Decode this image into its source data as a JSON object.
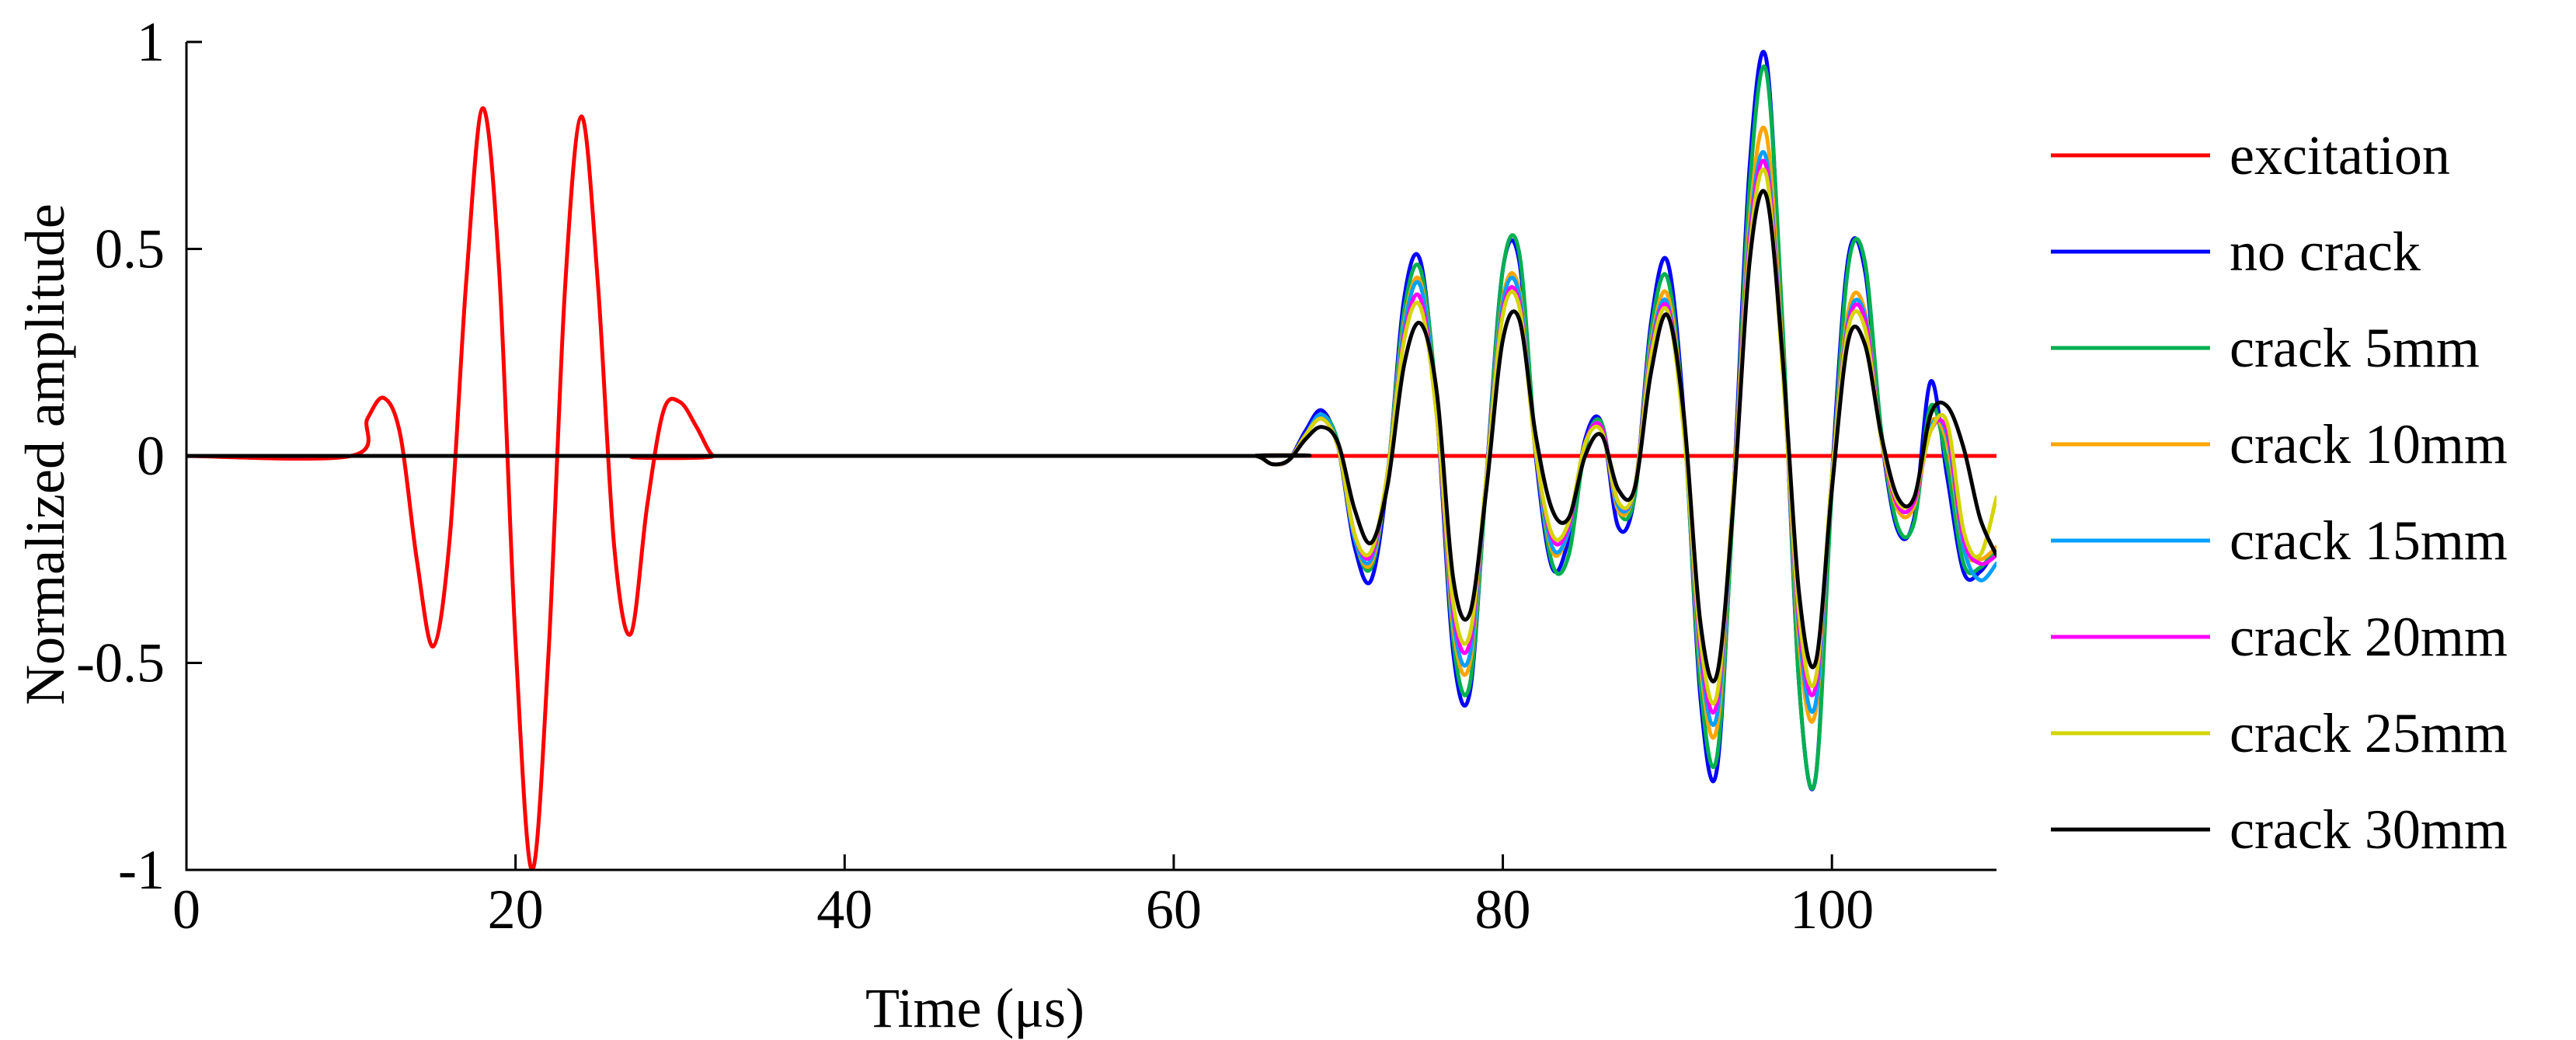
{
  "chart_data": {
    "type": "line",
    "title": "",
    "xlabel": "Time (μs)",
    "ylabel": "Normalized amplitude",
    "xlim": [
      0,
      110
    ],
    "ylim": [
      -1,
      1
    ],
    "xticks": [
      0,
      20,
      40,
      60,
      80,
      100
    ],
    "yticks": [
      -1,
      -0.5,
      0,
      0.5,
      1
    ],
    "xtick_labels": [
      "0",
      "20",
      "40",
      "60",
      "80",
      "100"
    ],
    "ytick_labels": [
      "-1",
      "-0.5",
      "0",
      "0.5",
      "1"
    ],
    "grid": false,
    "legend_position": "right",
    "series": [
      {
        "name": "excitation",
        "color": "#ff0000",
        "x": [
          0,
          10,
          11,
          12,
          13,
          14,
          15,
          16,
          17,
          18,
          19,
          20,
          21,
          22,
          23,
          24,
          25,
          26,
          27,
          28,
          29,
          30,
          31,
          32,
          33,
          110
        ],
        "y": [
          0,
          0,
          0.09,
          0.14,
          0.05,
          -0.25,
          -0.46,
          -0.2,
          0.42,
          0.84,
          0.45,
          -0.45,
          -1.0,
          -0.48,
          0.4,
          0.82,
          0.42,
          -0.22,
          -0.43,
          -0.12,
          0.11,
          0.13,
          0.07,
          0,
          0,
          0
        ]
      },
      {
        "name": "no crack",
        "color": "#0000ff",
        "x": [
          0,
          63,
          65,
          66,
          67,
          68,
          69,
          70,
          71,
          72,
          73,
          74,
          75,
          76,
          77,
          78,
          79,
          80,
          81,
          82,
          83,
          84,
          85,
          86,
          87,
          88,
          89,
          90,
          91,
          92,
          93,
          94,
          95,
          96,
          97,
          98,
          99,
          100,
          101,
          102,
          103,
          104,
          105,
          106,
          107,
          108,
          109,
          110
        ],
        "y": [
          0,
          0,
          0,
          -0.02,
          -0.01,
          0.06,
          0.11,
          0.02,
          -0.22,
          -0.3,
          -0.05,
          0.38,
          0.47,
          0.1,
          -0.48,
          -0.57,
          -0.05,
          0.45,
          0.47,
          0.0,
          -0.27,
          -0.2,
          0.04,
          0.08,
          -0.17,
          -0.1,
          0.32,
          0.47,
          0.1,
          -0.58,
          -0.76,
          -0.1,
          0.7,
          0.96,
          0.3,
          -0.55,
          -0.78,
          -0.05,
          0.48,
          0.45,
          0.05,
          -0.18,
          -0.15,
          0.18,
          -0.05,
          -0.28,
          -0.28,
          -0.22
        ]
      },
      {
        "name": "crack 5mm",
        "color": "#00b050",
        "x": [
          0,
          63,
          65,
          66,
          67,
          68,
          69,
          70,
          71,
          72,
          73,
          74,
          75,
          76,
          77,
          78,
          79,
          80,
          81,
          82,
          83,
          84,
          85,
          86,
          87,
          88,
          89,
          90,
          91,
          92,
          93,
          94,
          95,
          96,
          97,
          98,
          99,
          100,
          101,
          102,
          103,
          104,
          105,
          106,
          107,
          108,
          109,
          110
        ],
        "y": [
          0,
          0,
          0,
          -0.02,
          -0.01,
          0.05,
          0.1,
          0.03,
          -0.2,
          -0.27,
          -0.04,
          0.35,
          0.45,
          0.12,
          -0.45,
          -0.55,
          -0.06,
          0.45,
          0.49,
          0.02,
          -0.26,
          -0.24,
          0.02,
          0.08,
          -0.13,
          -0.1,
          0.3,
          0.43,
          0.08,
          -0.55,
          -0.73,
          -0.12,
          0.65,
          0.93,
          0.32,
          -0.55,
          -0.78,
          -0.08,
          0.46,
          0.47,
          0.06,
          -0.17,
          -0.16,
          0.12,
          -0.02,
          -0.26,
          -0.27,
          -0.22
        ]
      },
      {
        "name": "crack 10mm",
        "color": "#ffa500",
        "x": [
          0,
          63,
          65,
          66,
          67,
          68,
          69,
          70,
          71,
          72,
          73,
          74,
          75,
          76,
          77,
          78,
          79,
          80,
          81,
          82,
          83,
          84,
          85,
          86,
          87,
          88,
          89,
          90,
          91,
          92,
          93,
          94,
          95,
          96,
          97,
          98,
          99,
          100,
          101,
          102,
          103,
          104,
          105,
          106,
          107,
          108,
          109,
          110
        ],
        "y": [
          0,
          0,
          0,
          -0.02,
          -0.01,
          0.05,
          0.1,
          0.02,
          -0.2,
          -0.26,
          -0.04,
          0.32,
          0.42,
          0.1,
          -0.42,
          -0.5,
          -0.05,
          0.38,
          0.4,
          0.01,
          -0.23,
          -0.18,
          0.03,
          0.07,
          -0.13,
          -0.08,
          0.27,
          0.39,
          0.08,
          -0.5,
          -0.66,
          -0.1,
          0.57,
          0.78,
          0.25,
          -0.45,
          -0.62,
          -0.05,
          0.35,
          0.35,
          0.04,
          -0.13,
          -0.12,
          0.08,
          0.03,
          -0.22,
          -0.25,
          -0.22
        ]
      },
      {
        "name": "crack 15mm",
        "color": "#00a0ff",
        "x": [
          0,
          63,
          65,
          66,
          67,
          68,
          69,
          70,
          71,
          72,
          73,
          74,
          75,
          76,
          77,
          78,
          79,
          80,
          81,
          82,
          83,
          84,
          85,
          86,
          87,
          88,
          89,
          90,
          91,
          92,
          93,
          94,
          95,
          96,
          97,
          98,
          99,
          100,
          101,
          102,
          103,
          104,
          105,
          106,
          107,
          108,
          109,
          110
        ],
        "y": [
          0,
          0,
          0,
          -0.02,
          -0.01,
          0.05,
          0.1,
          0.02,
          -0.2,
          -0.25,
          -0.04,
          0.31,
          0.41,
          0.1,
          -0.4,
          -0.48,
          -0.05,
          0.37,
          0.39,
          0.01,
          -0.22,
          -0.18,
          0.03,
          0.07,
          -0.12,
          -0.08,
          0.26,
          0.37,
          0.07,
          -0.48,
          -0.63,
          -0.1,
          0.54,
          0.72,
          0.23,
          -0.42,
          -0.6,
          -0.05,
          0.33,
          0.34,
          0.04,
          -0.12,
          -0.11,
          0.07,
          0.05,
          -0.22,
          -0.3,
          -0.26
        ]
      },
      {
        "name": "crack 20mm",
        "color": "#ff00ff",
        "x": [
          0,
          63,
          65,
          66,
          67,
          68,
          69,
          70,
          71,
          72,
          73,
          74,
          75,
          76,
          77,
          78,
          79,
          80,
          81,
          82,
          83,
          84,
          85,
          86,
          87,
          88,
          89,
          90,
          91,
          92,
          93,
          94,
          95,
          96,
          97,
          98,
          99,
          100,
          101,
          102,
          103,
          104,
          105,
          106,
          107,
          108,
          109,
          110
        ],
        "y": [
          0,
          0,
          0,
          -0.02,
          -0.01,
          0.05,
          0.09,
          0.02,
          -0.19,
          -0.24,
          -0.04,
          0.29,
          0.38,
          0.09,
          -0.38,
          -0.45,
          -0.05,
          0.35,
          0.37,
          0.01,
          -0.2,
          -0.17,
          0.03,
          0.07,
          -0.11,
          -0.08,
          0.25,
          0.36,
          0.07,
          -0.46,
          -0.6,
          -0.09,
          0.52,
          0.7,
          0.22,
          -0.4,
          -0.56,
          -0.05,
          0.32,
          0.33,
          0.04,
          -0.12,
          -0.11,
          0.06,
          0.06,
          -0.2,
          -0.26,
          -0.24
        ]
      },
      {
        "name": "crack 25mm",
        "color": "#d4d400",
        "x": [
          0,
          63,
          65,
          66,
          67,
          68,
          69,
          70,
          71,
          72,
          73,
          74,
          75,
          76,
          77,
          78,
          79,
          80,
          81,
          82,
          83,
          84,
          85,
          86,
          87,
          88,
          89,
          90,
          91,
          92,
          93,
          94,
          95,
          96,
          97,
          98,
          99,
          100,
          101,
          102,
          103,
          104,
          105,
          106,
          107,
          108,
          109,
          110
        ],
        "y": [
          0,
          0,
          0,
          -0.02,
          -0.01,
          0.05,
          0.09,
          0.02,
          -0.19,
          -0.23,
          -0.04,
          0.28,
          0.36,
          0.09,
          -0.36,
          -0.43,
          -0.05,
          0.34,
          0.36,
          0.01,
          -0.19,
          -0.16,
          0.03,
          0.06,
          -0.11,
          -0.08,
          0.24,
          0.35,
          0.06,
          -0.44,
          -0.58,
          -0.09,
          0.5,
          0.68,
          0.21,
          -0.38,
          -0.54,
          -0.05,
          0.31,
          0.31,
          0.04,
          -0.11,
          -0.1,
          0.06,
          0.08,
          -0.18,
          -0.24,
          -0.1
        ]
      },
      {
        "name": "crack 30mm",
        "color": "#000000",
        "x": [
          0,
          63,
          65,
          66,
          67,
          68,
          69,
          70,
          71,
          72,
          73,
          74,
          75,
          76,
          77,
          78,
          79,
          80,
          81,
          82,
          83,
          84,
          85,
          86,
          87,
          88,
          89,
          90,
          91,
          92,
          93,
          94,
          95,
          96,
          97,
          98,
          99,
          100,
          101,
          102,
          103,
          104,
          105,
          106,
          107,
          108,
          109,
          110
        ],
        "y": [
          0,
          0,
          0,
          -0.02,
          -0.01,
          0.04,
          0.07,
          0.03,
          -0.13,
          -0.21,
          -0.07,
          0.22,
          0.32,
          0.15,
          -0.3,
          -0.38,
          -0.08,
          0.28,
          0.33,
          0.05,
          -0.13,
          -0.15,
          0.0,
          0.05,
          -0.08,
          -0.08,
          0.2,
          0.34,
          0.1,
          -0.4,
          -0.53,
          -0.12,
          0.47,
          0.63,
          0.24,
          -0.33,
          -0.5,
          -0.08,
          0.28,
          0.27,
          0.05,
          -0.1,
          -0.1,
          0.1,
          0.12,
          0.02,
          -0.15,
          -0.24
        ]
      }
    ]
  }
}
